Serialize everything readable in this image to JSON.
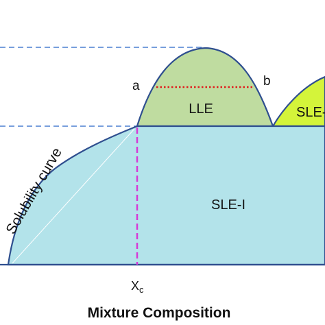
{
  "diagram": {
    "regions": {
      "lle": "LLE",
      "sle_i": "SLE-I",
      "sle_ii": "SLE-"
    },
    "points": {
      "a": "a",
      "b": "b"
    },
    "curve_label": "Solubility curve",
    "x_marker": {
      "main": "X",
      "sub": "c"
    },
    "x_axis_title": "Mixture Composition"
  },
  "colors": {
    "sle_i_fill": "#b3e3ea",
    "lle_fill": "#bfdca0",
    "sle_ii_fill": "#d4f43a",
    "outline": "#2f4f8f",
    "guide_dashed": "#4a7fd0",
    "xc_marker": "#d63ad6",
    "tie_line": "#e01c1c",
    "axis": "#2f4f8f"
  }
}
